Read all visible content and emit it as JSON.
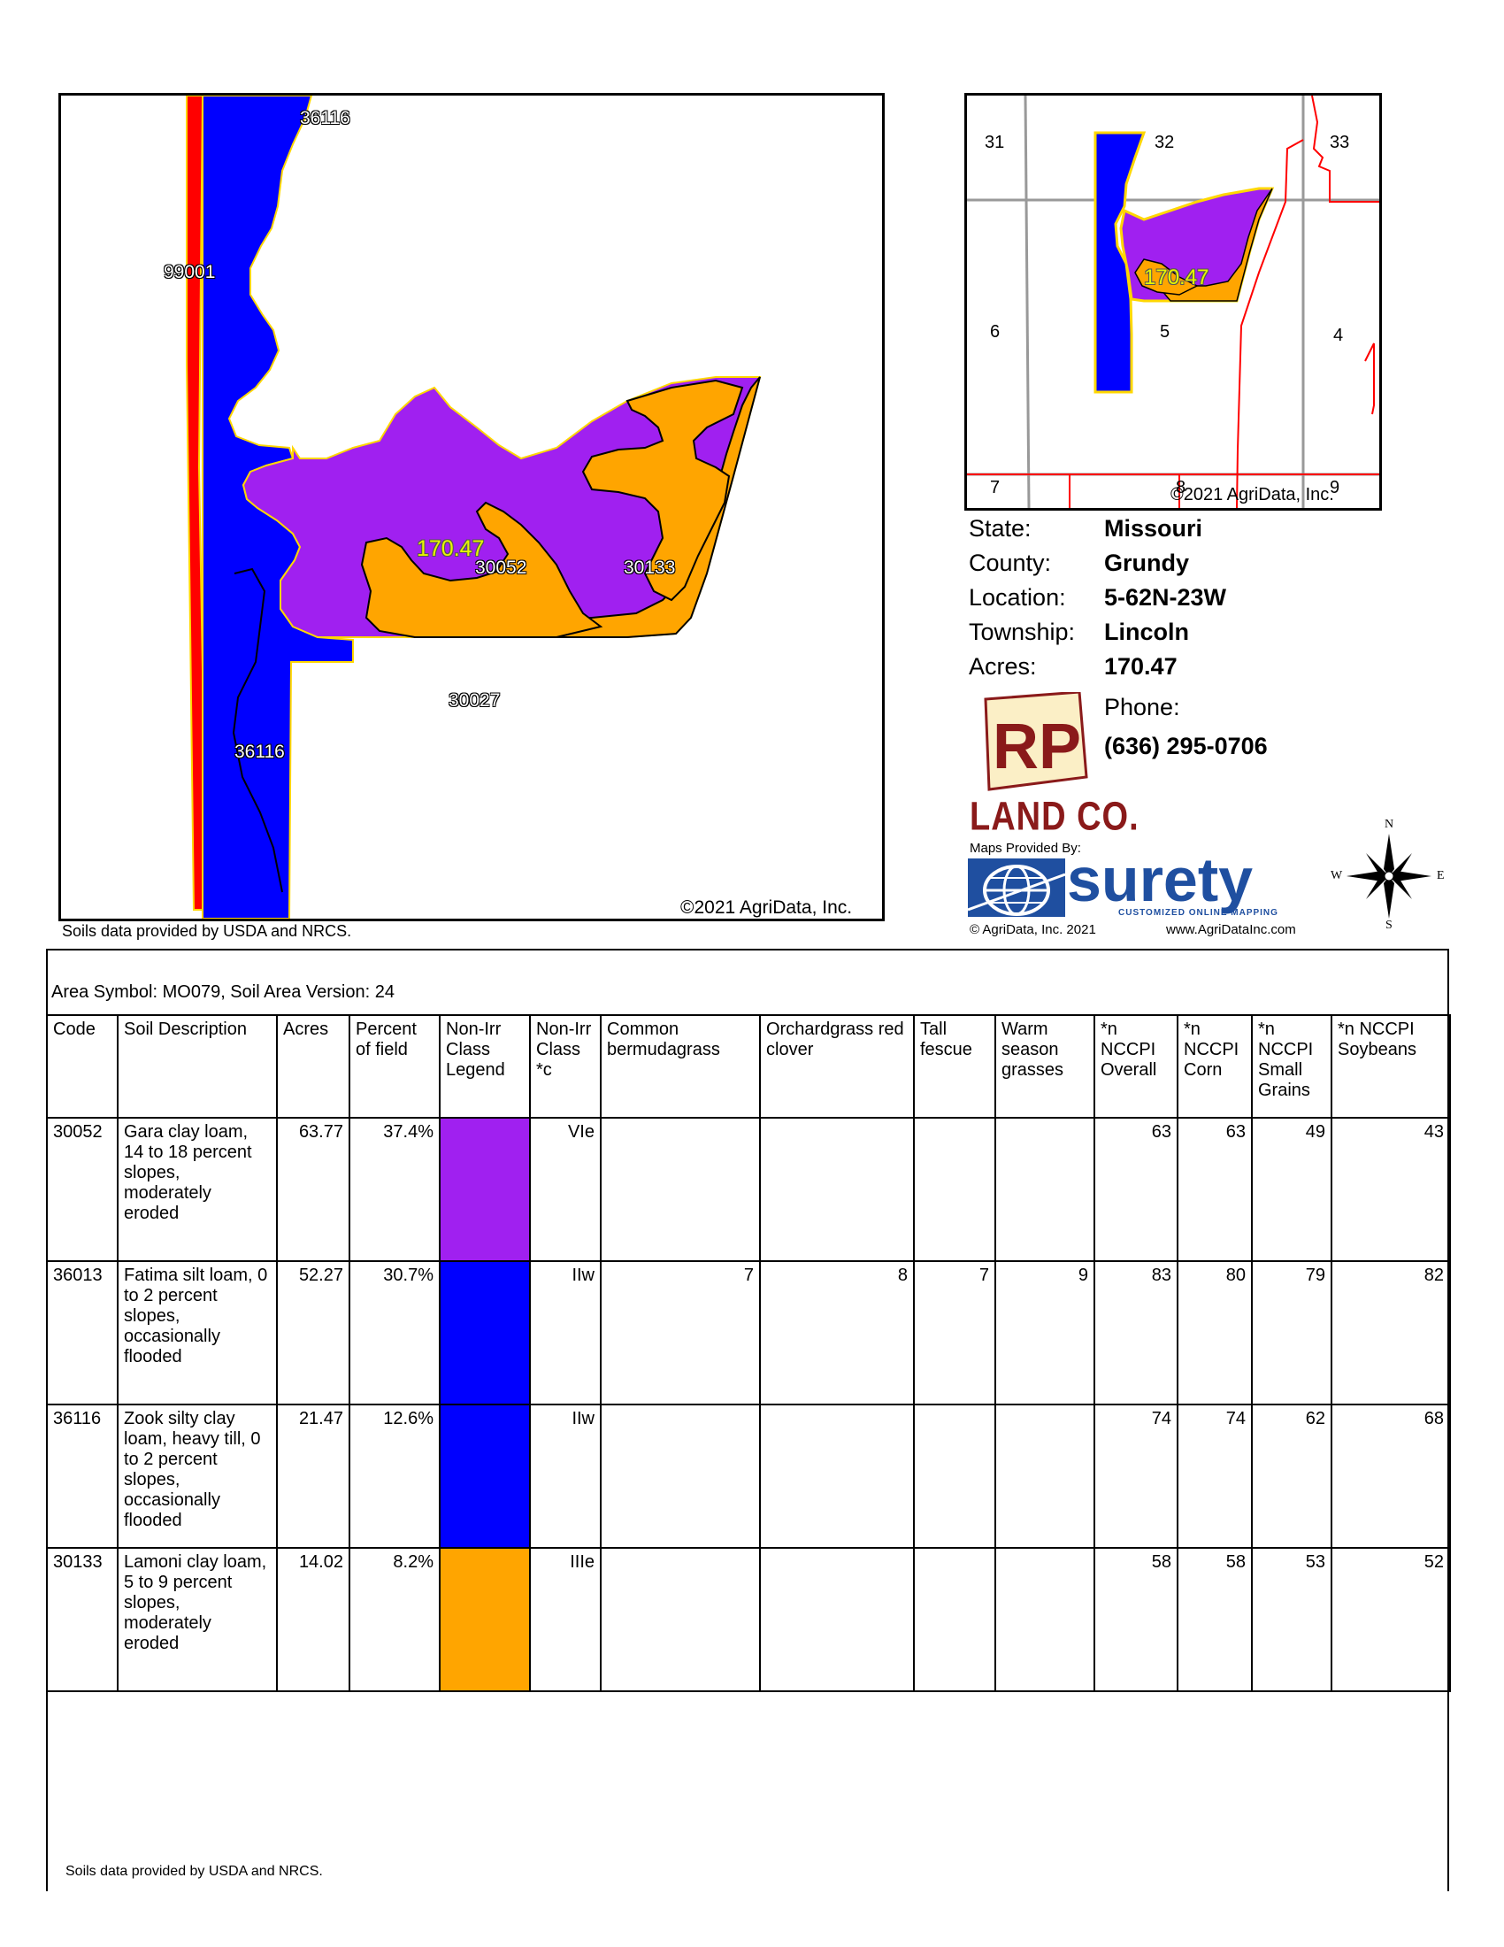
{
  "main_map": {
    "labels": [
      "36116",
      "99001",
      "170.47",
      "30052",
      "30133",
      "30027",
      "36116"
    ],
    "copyright": "©2021 AgriData, Inc."
  },
  "soils_note_top": "Soils data provided by USDA and NRCS.",
  "inset_map": {
    "sections": [
      "31",
      "32",
      "33",
      "6",
      "5",
      "4",
      "7",
      "8",
      "9"
    ],
    "acres_label": "170.47",
    "copyright": "©2021 AgriData, Inc."
  },
  "info": {
    "state_label": "State:",
    "state": "Missouri",
    "county_label": "County:",
    "county": "Grundy",
    "location_label": "Location:",
    "location": "5-62N-23W",
    "township_label": "Township:",
    "township": "Lincoln",
    "acres_label": "Acres:",
    "acres": "170.47",
    "phone_label": "Phone:",
    "phone": "(636) 295-0706"
  },
  "logo": {
    "company": "LAND CO.",
    "maps_provided_by": "Maps Provided By:",
    "surety": "surety",
    "surety_sub": "CUSTOMIZED ONLINE MAPPING",
    "agridata_copy": "© AgriData, Inc. 2021",
    "agridata_url": "www.AgriDataInc.com",
    "compass": [
      "N",
      "E",
      "S",
      "W"
    ]
  },
  "table": {
    "area_symbol": "Area Symbol: MO079, Soil Area Version: 24",
    "headers": [
      "Code",
      "Soil Description",
      "Acres",
      "Percent of field",
      "Non-Irr Class Legend",
      "Non-Irr Class *c",
      "Common bermudagrass",
      "Orchardgrass red clover",
      "Tall fescue",
      "Warm season grasses",
      "*n NCCPI Overall",
      "*n NCCPI Corn",
      "*n NCCPI Small Grains",
      "*n NCCPI Soybeans"
    ],
    "rows": [
      {
        "code": "30052",
        "desc": "Gara clay loam, 14 to 18 percent slopes, moderately eroded",
        "acres": "63.77",
        "pct": "37.4%",
        "color": "#a020f0",
        "cls": "VIe",
        "berm": "",
        "orch": "",
        "fescue": "",
        "warm": "",
        "overall": "63",
        "corn": "63",
        "small": "49",
        "soy": "43"
      },
      {
        "code": "36013",
        "desc": "Fatima silt loam, 0 to 2 percent slopes, occasionally flooded",
        "acres": "52.27",
        "pct": "30.7%",
        "color": "#0000ff",
        "cls": "IIw",
        "berm": "7",
        "orch": "8",
        "fescue": "7",
        "warm": "9",
        "overall": "83",
        "corn": "80",
        "small": "79",
        "soy": "82"
      },
      {
        "code": "36116",
        "desc": "Zook silty clay loam, heavy till, 0 to 2 percent slopes, occasionally flooded",
        "acres": "21.47",
        "pct": "12.6%",
        "color": "#0000ff",
        "cls": "IIw",
        "berm": "",
        "orch": "",
        "fescue": "",
        "warm": "",
        "overall": "74",
        "corn": "74",
        "small": "62",
        "soy": "68"
      },
      {
        "code": "30133",
        "desc": "Lamoni clay loam, 5 to 9 percent slopes, moderately eroded",
        "acres": "14.02",
        "pct": "8.2%",
        "color": "#ffa500",
        "cls": "IIIe",
        "berm": "",
        "orch": "",
        "fescue": "",
        "warm": "",
        "overall": "58",
        "corn": "58",
        "small": "53",
        "soy": "52"
      }
    ]
  },
  "soils_note_bottom": "Soils data provided by USDA and NRCS.",
  "colors": {
    "purple": "#a020f0",
    "blue": "#0000ff",
    "orange": "#ffa500",
    "red": "#ff0000",
    "border": "#ffd700"
  }
}
